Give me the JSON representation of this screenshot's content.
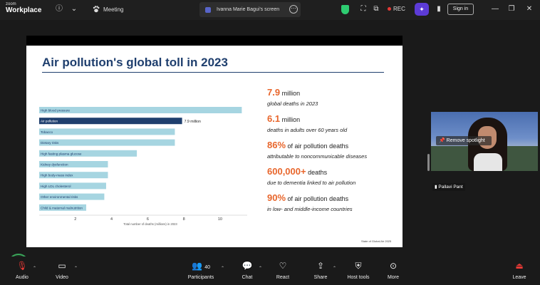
{
  "topbar": {
    "brand_small": "zoom",
    "brand_large": "Workplace",
    "info_icon": "ⓘ",
    "chevron_icon": "⌄",
    "meeting_label": "Meeting",
    "share_tab_label": "Ivanna Marie Bagui's screen",
    "rec_label": "REC",
    "signin_label": "Sign in"
  },
  "slide": {
    "title": "Air pollution's global toll in 2023",
    "source": "State of Global Air 2025"
  },
  "chart_data": {
    "type": "bar",
    "orientation": "horizontal",
    "categories": [
      "High blood pressure",
      "Air pollution",
      "Tobacco",
      "Dietary risks",
      "High fasting plasma glucose",
      "Kidney dysfunction",
      "High body-mass index",
      "High LDL cholesterol",
      "Other environmental risks",
      "Child & maternal malnutrition"
    ],
    "values": [
      11.2,
      7.9,
      7.5,
      7.5,
      5.4,
      3.8,
      3.8,
      3.7,
      3.6,
      2.6
    ],
    "highlight_index": 1,
    "highlight_label": "7.9 million",
    "xlabel": "Total number of deaths (millions) in 2023",
    "xlim": [
      0,
      11.5
    ],
    "xticks": [
      2,
      4,
      6,
      8,
      10
    ],
    "colors": {
      "bar": "#a6d5e1",
      "highlight": "#1f3f6e"
    }
  },
  "stats": [
    {
      "big": "7.9",
      "unit": " million",
      "desc": "global deaths in 2023"
    },
    {
      "big": "6.1",
      "unit": " million",
      "desc": "deaths in adults over 60 years old"
    },
    {
      "big": "86%",
      "unit": " of air pollution deaths",
      "desc": "attributable to noncommunicable diseases"
    },
    {
      "big": "600,000+",
      "unit": " deaths",
      "desc": "due to dementia linked to air pollution"
    },
    {
      "big": "90%",
      "unit": " of air pollution deaths",
      "desc": "in low- and middle-income countries"
    }
  ],
  "video": {
    "spotlight_label": "Remove spotlight",
    "participant_name": "Pallavi Pant"
  },
  "toolbar": {
    "audio": "Audio",
    "video": "Video",
    "participants": "Participants",
    "participants_count": "40",
    "chat": "Chat",
    "react": "React",
    "share": "Share",
    "host_tools": "Host tools",
    "more": "More",
    "leave": "Leave"
  }
}
